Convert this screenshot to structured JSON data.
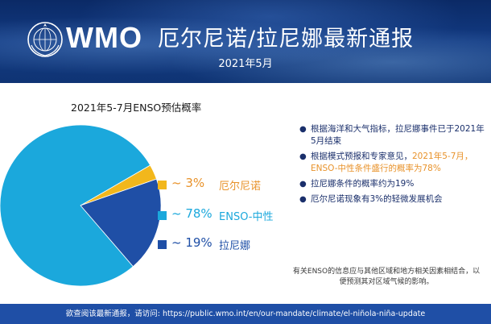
{
  "header": {
    "logo_text": "WMO",
    "title": "厄尔尼诺/拉尼娜最新通报",
    "date": "2021年5月"
  },
  "colors": {
    "el_nino": "#f2b71c",
    "neutral": "#1ba8dc",
    "la_nina": "#1f4fa6",
    "text_dark": "#1a2f6b",
    "highlight": "#e8922a",
    "footer_bg": "#1f4fa6"
  },
  "chart_data": {
    "type": "pie",
    "title": "2021年5-7月ENSO预估概率",
    "categories": [
      "厄尔尼诺",
      "ENSO-中性",
      "拉尼娜"
    ],
    "values": [
      3,
      78,
      19
    ],
    "labels": [
      "~ 3%",
      "~ 78%",
      "~ 19%"
    ],
    "colors": [
      "#f2b71c",
      "#1ba8dc",
      "#1f4fa6"
    ],
    "label_colors": [
      "#e8922a",
      "#1ba8dc",
      "#1f4fa6"
    ],
    "legend_position": "right"
  },
  "bullets": [
    {
      "text": "根据海洋和大气指标，拉尼娜事件已于2021年5月结束",
      "highlight": ""
    },
    {
      "text": "根据模式预报和专家意见，",
      "highlight": "2021年5-7月，ENSO-中性条件盛行的概率为78%"
    },
    {
      "text": "拉尼娜条件的概率约为19%",
      "highlight": ""
    },
    {
      "text": "厄尔尼诺现象有3%的轻微发展机会",
      "highlight": ""
    }
  ],
  "footnote": "有关ENSO的信息应与其他区域和地方相关因素相结合，以便预测其对区域气候的影响。",
  "footer": {
    "text": "欲查阅该最新通报，请访问: https://public.wmo.int/en/our-mandate/climate/el-niñola-niña-update"
  }
}
